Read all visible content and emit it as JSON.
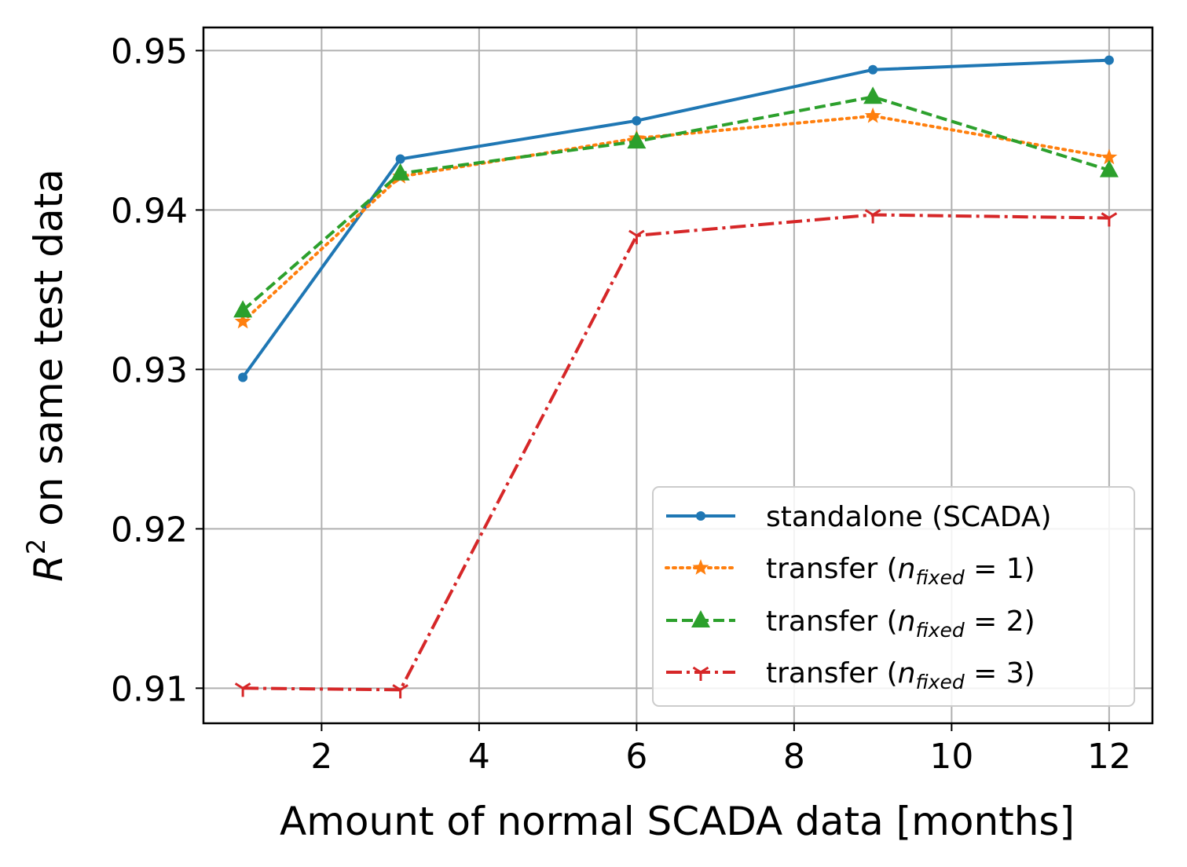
{
  "chart_data": {
    "type": "line",
    "title": "",
    "xlabel": "Amount of normal SCADA data [months]",
    "ylabel_base": "R",
    "ylabel_sup": "2",
    "ylabel_rest": " on same test data",
    "xlim": [
      0.5,
      12.55
    ],
    "ylim": [
      0.9078,
      0.95145
    ],
    "xticks": [
      2,
      4,
      6,
      8,
      10,
      12
    ],
    "yticks": [
      0.91,
      0.92,
      0.93,
      0.94,
      0.95
    ],
    "xtick_labels": [
      "2",
      "4",
      "6",
      "8",
      "10",
      "12"
    ],
    "ytick_labels": [
      "0.91",
      "0.92",
      "0.93",
      "0.94",
      "0.95"
    ],
    "grid": true,
    "legend_position": "lower-right",
    "x": [
      1,
      3,
      6,
      9,
      12
    ],
    "series": [
      {
        "name": "standalone (SCADA)",
        "legend_main": "standalone (SCADA)",
        "values": [
          0.9295,
          0.9432,
          0.9456,
          0.9488,
          0.9494
        ],
        "color": "#1f77b4",
        "linestyle": "solid",
        "marker": "point"
      },
      {
        "name": "transfer (n_fixed = 1)",
        "legend_main": "transfer (",
        "legend_math": "n",
        "legend_sub": "fixed",
        "legend_eq": " = 1)",
        "values": [
          0.933,
          0.9421,
          0.9445,
          0.9459,
          0.9433
        ],
        "color": "#ff7f0e",
        "linestyle": "dotted",
        "marker": "star"
      },
      {
        "name": "transfer (n_fixed = 2)",
        "legend_main": "transfer (",
        "legend_math": "n",
        "legend_sub": "fixed",
        "legend_eq": " = 2)",
        "values": [
          0.9337,
          0.9423,
          0.9443,
          0.9471,
          0.9425
        ],
        "color": "#2ca02c",
        "linestyle": "dashed",
        "marker": "triangle"
      },
      {
        "name": "transfer (n_fixed = 3)",
        "legend_main": "transfer (",
        "legend_math": "n",
        "legend_sub": "fixed",
        "legend_eq": " = 3)",
        "values": [
          0.91,
          0.9099,
          0.9384,
          0.9397,
          0.9395
        ],
        "color": "#d62728",
        "linestyle": "dashdot",
        "marker": "tri_down"
      }
    ]
  }
}
